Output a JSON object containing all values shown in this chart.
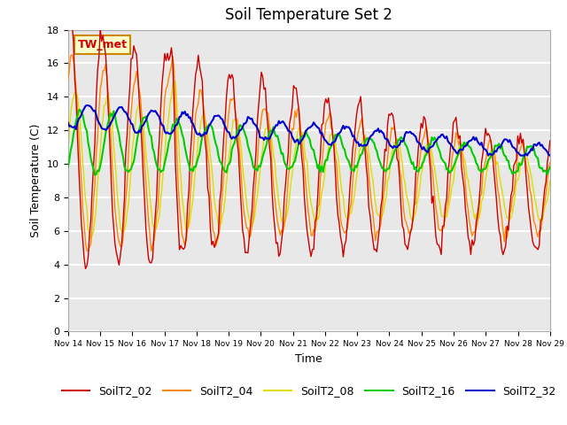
{
  "title": "Soil Temperature Set 2",
  "xlabel": "Time",
  "ylabel": "Soil Temperature (C)",
  "ylim": [
    0,
    18
  ],
  "yticks": [
    0,
    2,
    4,
    6,
    8,
    10,
    12,
    14,
    16,
    18
  ],
  "xlim": [
    0,
    360
  ],
  "xtick_labels": [
    "Nov 14",
    "Nov 15",
    "Nov 16",
    "Nov 17",
    "Nov 18",
    "Nov 19",
    "Nov 20",
    "Nov 21",
    "Nov 22",
    "Nov 23",
    "Nov 24",
    "Nov 25",
    "Nov 26",
    "Nov 27",
    "Nov 28",
    "Nov 29"
  ],
  "colors": {
    "SoilT2_02": "#cc0000",
    "SoilT2_04": "#ff8800",
    "SoilT2_08": "#dddd00",
    "SoilT2_16": "#00cc00",
    "SoilT2_32": "#0000cc"
  },
  "annotation_text": "TW_met",
  "annotation_color": "#cc0000",
  "annotation_bg": "#ffffcc",
  "annotation_border": "#cc8800",
  "plot_bg": "#e8e8e8",
  "grid_color": "#ffffff",
  "title_fontsize": 12,
  "axis_fontsize": 9,
  "tick_fontsize": 8,
  "legend_fontsize": 9
}
